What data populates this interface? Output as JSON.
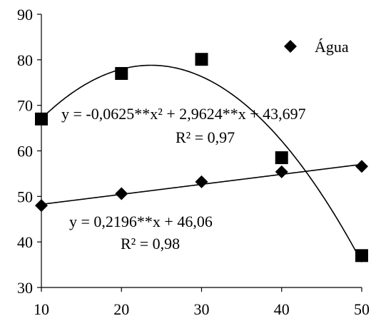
{
  "chart_data": {
    "type": "scatter",
    "xlim": [
      10,
      50
    ],
    "ylim": [
      30,
      90
    ],
    "x_ticks": [
      10,
      20,
      30,
      40,
      50
    ],
    "y_ticks": [
      30,
      40,
      50,
      60,
      70,
      80,
      90
    ],
    "grid": false,
    "legend_position": "top-right",
    "series": [
      {
        "name": "Água",
        "marker": "diamond",
        "color": "#000000",
        "x": [
          10,
          20,
          30,
          40,
          50
        ],
        "y": [
          48.0,
          50.6,
          53.2,
          55.4,
          56.6
        ],
        "fit": {
          "kind": "linear",
          "a": 0.2196,
          "b": 46.06
        }
      },
      {
        "marker": "square",
        "color": "#000000",
        "x": [
          10,
          20,
          30,
          40,
          50
        ],
        "y": [
          67.0,
          77.0,
          80.1,
          58.5,
          37.0
        ],
        "fit": {
          "kind": "quadratic",
          "a": -0.0625,
          "b": 2.9624,
          "c": 43.697
        }
      }
    ],
    "annotations": {
      "quad_equation": "y = -0,0625**x² + 2,9624**x + 43,697",
      "quad_r2": "R² = 0,97",
      "lin_equation": "y = 0,2196**x + 46,06",
      "lin_r2": "R² = 0,98"
    }
  }
}
